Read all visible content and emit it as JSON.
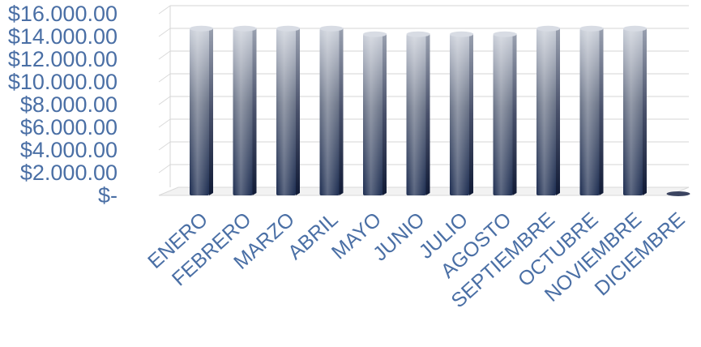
{
  "chart_data": {
    "type": "bar",
    "style": "3d-column",
    "categories": [
      "ENERO",
      "FEBRERO",
      "MARZO",
      "ABRIL",
      "MAYO",
      "JUNIO",
      "JULIO",
      "AGOSTO",
      "SEPTIEMBRE",
      "OCTUBRE",
      "NOVIEMBRE",
      "DICIEMBRE"
    ],
    "values": [
      14700,
      14700,
      14700,
      14700,
      14200,
      14200,
      14200,
      14200,
      14700,
      14700,
      14700,
      0
    ],
    "y_tick_labels": [
      "$-",
      "$2.000.00",
      "$4.000.00",
      "$6.000.00",
      "$8.000.00",
      "$10.000.00",
      "$12.000.00",
      "$14.000.00",
      "$16.000.00"
    ],
    "ylim": [
      0,
      16000
    ],
    "y_step": 2000,
    "grid": true,
    "legend": "none",
    "colors": {
      "bar_top": "#c9ced8",
      "bar_mid": "#6b7488",
      "bar_bottom": "#1c2c50",
      "axis_text": "#4a6fa5",
      "grid": "#d6d6d6"
    }
  }
}
